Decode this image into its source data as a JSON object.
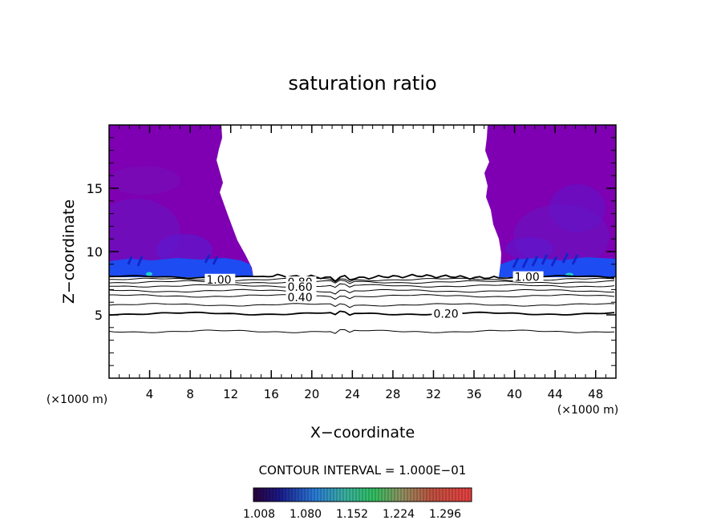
{
  "chart_data": {
    "type": "contour",
    "title": "saturation ratio",
    "xlabel": "X−coordinate",
    "ylabel": "Z−coordinate",
    "x_unit_left": "(×1000 m)",
    "x_unit_right": "(×1000 m)",
    "xlim": [
      0,
      50
    ],
    "ylim": [
      0,
      20
    ],
    "x_ticks": [
      4,
      8,
      12,
      16,
      20,
      24,
      28,
      32,
      36,
      40,
      44,
      48
    ],
    "y_ticks": [
      5,
      10,
      15
    ],
    "contour_interval_text": "CONTOUR INTERVAL = 1.000E−01",
    "colorbar_ticks": [
      "1.008",
      "1.080",
      "1.152",
      "1.224",
      "1.296"
    ],
    "contour_lines": [
      {
        "level": 0.1,
        "z": 3.7
      },
      {
        "level": 0.2,
        "z": 5.1
      },
      {
        "level": 0.3,
        "z": 5.8
      },
      {
        "level": 0.4,
        "z": 6.5
      },
      {
        "level": 0.5,
        "z": 6.9
      },
      {
        "level": 0.6,
        "z": 7.3
      },
      {
        "level": 0.7,
        "z": 7.6
      },
      {
        "level": 0.8,
        "z": 7.8
      },
      {
        "level": 0.9,
        "z": 8.0
      }
    ],
    "contour_labels": [
      {
        "text": "1.00",
        "x": 9.6,
        "z": 7.8
      },
      {
        "text": "0.80",
        "x": 17.6,
        "z": 7.6
      },
      {
        "text": "0.60",
        "x": 17.6,
        "z": 7.2
      },
      {
        "text": "0.40",
        "x": 17.6,
        "z": 6.4
      },
      {
        "text": "0.20",
        "x": 32.0,
        "z": 5.1
      },
      {
        "text": "1.00",
        "x": 40.0,
        "z": 8.0
      }
    ],
    "supersaturated_regions": [
      {
        "side": "left",
        "x_range": [
          0,
          14.0
        ],
        "z_range": [
          8.0,
          20
        ]
      },
      {
        "side": "right",
        "x_range": [
          38.5,
          50
        ],
        "z_range": [
          8.0,
          20
        ]
      }
    ],
    "colors": {
      "high_purple": "#7e00b2",
      "mid_purple": "#6a12c0",
      "blue_band": "#1d4cf2",
      "dark_blue": "#1424c8"
    }
  }
}
